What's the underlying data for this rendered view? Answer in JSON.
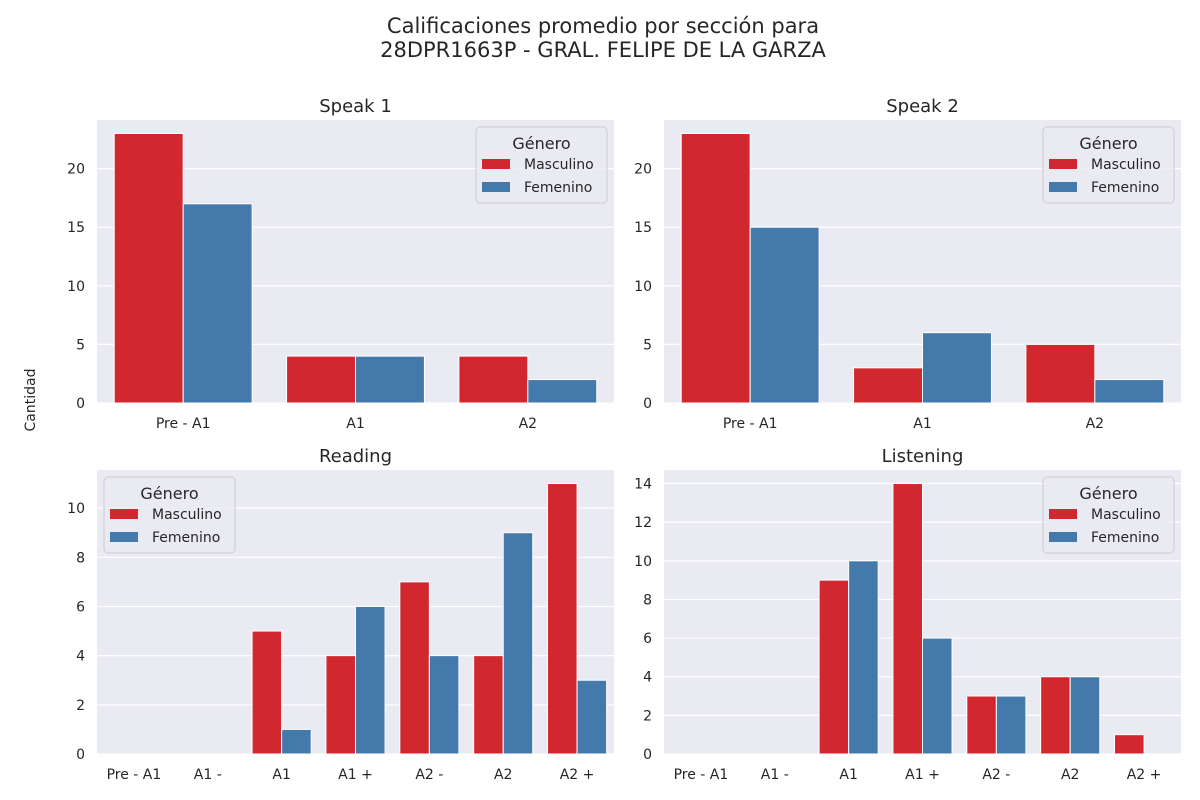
{
  "figure": {
    "title_line1": "Calificaciones promedio por sección para",
    "title_line2": "28DPR1663P - GRAL. FELIPE DE LA GARZA",
    "ylabel": "Cantidad"
  },
  "colors": {
    "Masculino": "#d0282e",
    "Femenino": "#4479ac",
    "plot_bg": "#eaeaf2",
    "grid": "#ffffff"
  },
  "chart_data": [
    {
      "type": "bar",
      "title": "Speak 1",
      "categories": [
        "Pre - A1",
        "A1",
        "A2"
      ],
      "series": [
        {
          "name": "Masculino",
          "values": [
            23,
            4,
            4
          ]
        },
        {
          "name": "Femenino",
          "values": [
            17,
            4,
            2
          ]
        }
      ],
      "ylim": [
        0,
        24.15
      ],
      "yticks": [
        0,
        5,
        10,
        15,
        20
      ],
      "legend": {
        "title": "Género",
        "position": "top-right"
      },
      "grid": true
    },
    {
      "type": "bar",
      "title": "Speak 2",
      "categories": [
        "Pre - A1",
        "A1",
        "A2"
      ],
      "series": [
        {
          "name": "Masculino",
          "values": [
            23,
            3,
            5
          ]
        },
        {
          "name": "Femenino",
          "values": [
            15,
            6,
            2
          ]
        }
      ],
      "ylim": [
        0,
        24.15
      ],
      "yticks": [
        0,
        5,
        10,
        15,
        20
      ],
      "legend": {
        "title": "Género",
        "position": "top-right"
      },
      "grid": true
    },
    {
      "type": "bar",
      "title": "Reading",
      "categories": [
        "Pre - A1",
        "A1 -",
        "A1",
        "A1 +",
        "A2 -",
        "A2",
        "A2 +"
      ],
      "series": [
        {
          "name": "Masculino",
          "values": [
            0,
            0,
            5,
            4,
            7,
            4,
            11
          ]
        },
        {
          "name": "Femenino",
          "values": [
            0,
            0,
            1,
            6,
            4,
            9,
            3
          ]
        }
      ],
      "ylim": [
        0,
        11.55
      ],
      "yticks": [
        0,
        2,
        4,
        6,
        8,
        10
      ],
      "legend": {
        "title": "Género",
        "position": "top-left"
      },
      "grid": true
    },
    {
      "type": "bar",
      "title": "Listening",
      "categories": [
        "Pre - A1",
        "A1 -",
        "A1",
        "A1 +",
        "A2 -",
        "A2",
        "A2 +"
      ],
      "series": [
        {
          "name": "Masculino",
          "values": [
            0,
            0,
            9,
            14,
            3,
            4,
            1
          ]
        },
        {
          "name": "Femenino",
          "values": [
            0,
            0,
            10,
            6,
            3,
            4,
            0
          ]
        }
      ],
      "ylim": [
        0,
        14.7
      ],
      "yticks": [
        0,
        2,
        4,
        6,
        8,
        10,
        12,
        14
      ],
      "legend": {
        "title": "Género",
        "position": "top-right"
      },
      "grid": true
    }
  ]
}
